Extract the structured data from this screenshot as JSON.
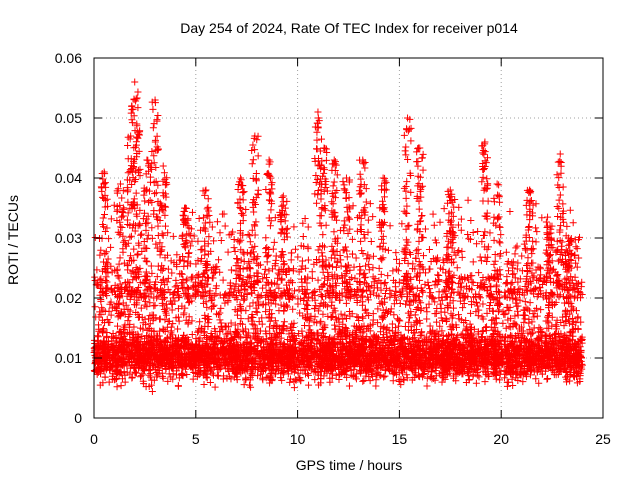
{
  "chart_data": {
    "type": "scatter",
    "title": "Day 254 of 2024, Rate Of TEC Index for receiver p014",
    "xlabel": "GPS time / hours",
    "ylabel": "ROTI / TECUs",
    "xlim": [
      0,
      25
    ],
    "ylim": [
      0,
      0.06
    ],
    "x_ticks": [
      0,
      5,
      10,
      15,
      20,
      25
    ],
    "x_tick_labels": [
      "0",
      "5",
      "10",
      "15",
      "20",
      "25"
    ],
    "y_ticks": [
      0,
      0.01,
      0.02,
      0.03,
      0.04,
      0.05,
      0.06
    ],
    "y_tick_labels": [
      "0",
      "0.01",
      "0.02",
      "0.03",
      "0.04",
      "0.05",
      "0.06"
    ],
    "grid": true,
    "marker": "+",
    "marker_color": "#ff0000",
    "series": [
      {
        "name": "ROTI",
        "x_range": [
          0,
          24
        ],
        "typical_range": [
          0.005,
          0.02
        ],
        "peaks": [
          {
            "x": 0.5,
            "y": 0.041
          },
          {
            "x": 1.3,
            "y": 0.039
          },
          {
            "x": 1.8,
            "y": 0.047
          },
          {
            "x": 2.0,
            "y": 0.056
          },
          {
            "x": 2.1,
            "y": 0.049
          },
          {
            "x": 2.6,
            "y": 0.043
          },
          {
            "x": 3.0,
            "y": 0.053
          },
          {
            "x": 3.4,
            "y": 0.042
          },
          {
            "x": 4.5,
            "y": 0.035
          },
          {
            "x": 5.5,
            "y": 0.038
          },
          {
            "x": 7.2,
            "y": 0.04
          },
          {
            "x": 7.9,
            "y": 0.047
          },
          {
            "x": 8.6,
            "y": 0.043
          },
          {
            "x": 9.3,
            "y": 0.037
          },
          {
            "x": 11.0,
            "y": 0.051
          },
          {
            "x": 11.3,
            "y": 0.045
          },
          {
            "x": 11.8,
            "y": 0.043
          },
          {
            "x": 12.4,
            "y": 0.04
          },
          {
            "x": 13.2,
            "y": 0.043
          },
          {
            "x": 14.2,
            "y": 0.04
          },
          {
            "x": 15.4,
            "y": 0.05
          },
          {
            "x": 16.0,
            "y": 0.045
          },
          {
            "x": 17.5,
            "y": 0.038
          },
          {
            "x": 19.2,
            "y": 0.046
          },
          {
            "x": 19.8,
            "y": 0.039
          },
          {
            "x": 21.4,
            "y": 0.038
          },
          {
            "x": 22.4,
            "y": 0.032
          },
          {
            "x": 22.9,
            "y": 0.044
          },
          {
            "x": 23.3,
            "y": 0.03
          }
        ]
      }
    ]
  }
}
